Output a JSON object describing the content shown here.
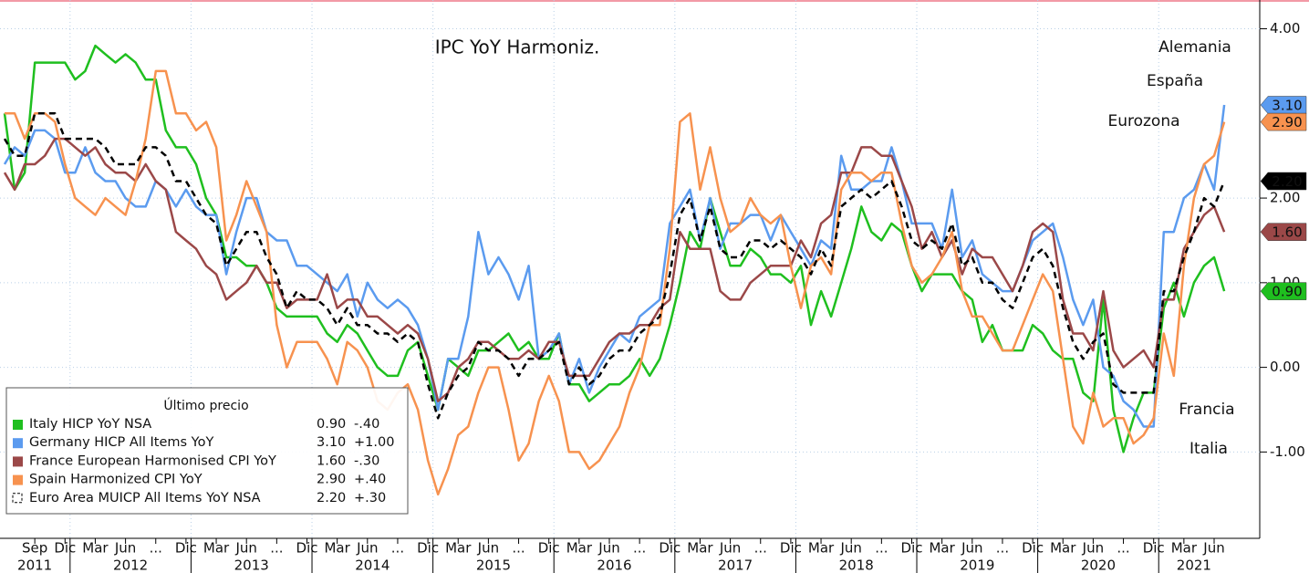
{
  "chart_data": {
    "type": "line",
    "title": "IPC YoY Harmoniz.",
    "legend_title": "Último precio",
    "x": [
      "2011-06",
      "2011-07",
      "2011-08",
      "2011-09",
      "2011-10",
      "2011-11",
      "2011-12",
      "2012-01",
      "2012-02",
      "2012-03",
      "2012-04",
      "2012-05",
      "2012-06",
      "2012-07",
      "2012-08",
      "2012-09",
      "2012-10",
      "2012-11",
      "2012-12",
      "2013-01",
      "2013-02",
      "2013-03",
      "2013-04",
      "2013-05",
      "2013-06",
      "2013-07",
      "2013-08",
      "2013-09",
      "2013-10",
      "2013-11",
      "2013-12",
      "2014-01",
      "2014-02",
      "2014-03",
      "2014-04",
      "2014-05",
      "2014-06",
      "2014-07",
      "2014-08",
      "2014-09",
      "2014-10",
      "2014-11",
      "2014-12",
      "2015-01",
      "2015-02",
      "2015-03",
      "2015-04",
      "2015-05",
      "2015-06",
      "2015-07",
      "2015-08",
      "2015-09",
      "2015-10",
      "2015-11",
      "2015-12",
      "2016-01",
      "2016-02",
      "2016-03",
      "2016-04",
      "2016-05",
      "2016-06",
      "2016-07",
      "2016-08",
      "2016-09",
      "2016-10",
      "2016-11",
      "2016-12",
      "2017-01",
      "2017-02",
      "2017-03",
      "2017-04",
      "2017-05",
      "2017-06",
      "2017-07",
      "2017-08",
      "2017-09",
      "2017-10",
      "2017-11",
      "2017-12",
      "2018-01",
      "2018-02",
      "2018-03",
      "2018-04",
      "2018-05",
      "2018-06",
      "2018-07",
      "2018-08",
      "2018-09",
      "2018-10",
      "2018-11",
      "2018-12",
      "2019-01",
      "2019-02",
      "2019-03",
      "2019-04",
      "2019-05",
      "2019-06",
      "2019-07",
      "2019-08",
      "2019-09",
      "2019-10",
      "2019-11",
      "2019-12",
      "2020-01",
      "2020-02",
      "2020-03",
      "2020-04",
      "2020-05",
      "2020-06",
      "2020-07",
      "2020-08",
      "2020-09",
      "2020-10",
      "2020-11",
      "2020-12",
      "2021-01",
      "2021-02",
      "2021-03",
      "2021-04",
      "2021-05",
      "2021-06",
      "2021-07"
    ],
    "xticks": [
      {
        "value": "2011-09",
        "label": "Sep"
      },
      {
        "value": "2011-12",
        "label": "Dic"
      },
      {
        "value": "2012-03",
        "label": "Mar"
      },
      {
        "value": "2012-06",
        "label": "Jun"
      },
      {
        "value": "2012-09",
        "label": "..."
      },
      {
        "value": "2012-12",
        "label": "Dic"
      },
      {
        "value": "2013-03",
        "label": "Mar"
      },
      {
        "value": "2013-06",
        "label": "Jun"
      },
      {
        "value": "2013-09",
        "label": "..."
      },
      {
        "value": "2013-12",
        "label": "Dic"
      },
      {
        "value": "2014-03",
        "label": "Mar"
      },
      {
        "value": "2014-06",
        "label": "Jun"
      },
      {
        "value": "2014-09",
        "label": "..."
      },
      {
        "value": "2014-12",
        "label": "Dic"
      },
      {
        "value": "2015-03",
        "label": "Mar"
      },
      {
        "value": "2015-06",
        "label": "Jun"
      },
      {
        "value": "2015-09",
        "label": "..."
      },
      {
        "value": "2015-12",
        "label": "Dic"
      },
      {
        "value": "2016-03",
        "label": "Mar"
      },
      {
        "value": "2016-06",
        "label": "Jun"
      },
      {
        "value": "2016-09",
        "label": "..."
      },
      {
        "value": "2016-12",
        "label": "Dic"
      },
      {
        "value": "2017-03",
        "label": "Mar"
      },
      {
        "value": "2017-06",
        "label": "Jun"
      },
      {
        "value": "2017-09",
        "label": "..."
      },
      {
        "value": "2017-12",
        "label": "Dic"
      },
      {
        "value": "2018-03",
        "label": "Mar"
      },
      {
        "value": "2018-06",
        "label": "Jun"
      },
      {
        "value": "2018-09",
        "label": "..."
      },
      {
        "value": "2018-12",
        "label": "Dic"
      },
      {
        "value": "2019-03",
        "label": "Mar"
      },
      {
        "value": "2019-06",
        "label": "Jun"
      },
      {
        "value": "2019-09",
        "label": "..."
      },
      {
        "value": "2019-12",
        "label": "Dic"
      },
      {
        "value": "2020-03",
        "label": "Mar"
      },
      {
        "value": "2020-06",
        "label": "Jun"
      },
      {
        "value": "2020-09",
        "label": "..."
      },
      {
        "value": "2020-12",
        "label": "Dic"
      },
      {
        "value": "2021-03",
        "label": "Mar"
      },
      {
        "value": "2021-06",
        "label": "Jun"
      }
    ],
    "years": [
      "2011",
      "2012",
      "2013",
      "2014",
      "2015",
      "2016",
      "2017",
      "2018",
      "2019",
      "2020",
      "2021"
    ],
    "ylim": [
      -2.02,
      4.34
    ],
    "yticks": [
      {
        "value": 4,
        "label": "4.00"
      },
      {
        "value": 2,
        "label": "2.00"
      },
      {
        "value": 1,
        "label": "1.00"
      },
      {
        "value": 0,
        "label": "0.00"
      },
      {
        "value": -1,
        "label": "-1.00"
      }
    ],
    "grid": true,
    "series": [
      {
        "name": "Italy HICP YoY NSA",
        "region_label": "Italia",
        "color": "#1fbf1f",
        "dashed": false,
        "last": 0.9,
        "last_label": "0.90",
        "change": -0.4,
        "change_label": "-.40",
        "values": [
          3.0,
          2.1,
          2.3,
          3.6,
          3.6,
          3.6,
          3.6,
          3.4,
          3.5,
          3.8,
          3.7,
          3.6,
          3.7,
          3.6,
          3.4,
          3.4,
          2.8,
          2.6,
          2.6,
          2.4,
          2.0,
          1.8,
          1.3,
          1.3,
          1.2,
          1.2,
          1.0,
          0.7,
          0.6,
          0.6,
          0.6,
          0.6,
          0.4,
          0.3,
          0.5,
          0.4,
          0.2,
          0.0,
          -0.1,
          -0.1,
          0.2,
          0.3,
          -0.1,
          -0.5,
          0.1,
          0.0,
          -0.1,
          0.2,
          0.2,
          0.3,
          0.4,
          0.2,
          0.3,
          0.1,
          0.1,
          0.4,
          -0.2,
          -0.2,
          -0.4,
          -0.3,
          -0.2,
          -0.2,
          -0.1,
          0.1,
          -0.1,
          0.1,
          0.5,
          1.0,
          1.6,
          1.4,
          2.0,
          1.6,
          1.2,
          1.2,
          1.4,
          1.3,
          1.1,
          1.1,
          1.0,
          1.2,
          0.5,
          0.9,
          0.6,
          1.0,
          1.4,
          1.9,
          1.6,
          1.5,
          1.7,
          1.6,
          1.2,
          0.9,
          1.1,
          1.1,
          1.1,
          0.9,
          0.8,
          0.3,
          0.5,
          0.2,
          0.2,
          0.2,
          0.5,
          0.4,
          0.2,
          0.1,
          0.1,
          -0.3,
          -0.4,
          0.8,
          -0.5,
          -1.0,
          -0.6,
          -0.3,
          -0.3,
          0.7,
          1.0,
          0.6,
          1.0,
          1.2,
          1.3,
          0.9
        ]
      },
      {
        "name": "Germany HICP All Items YoY",
        "region_label": "Alemania",
        "color": "#5b9bef",
        "dashed": false,
        "last": 3.1,
        "last_label": "3.10",
        "change": 1.0,
        "change_label": "+1.00",
        "values": [
          2.4,
          2.6,
          2.5,
          2.8,
          2.8,
          2.7,
          2.3,
          2.3,
          2.6,
          2.3,
          2.2,
          2.2,
          2.0,
          1.9,
          1.9,
          2.2,
          2.1,
          1.9,
          2.1,
          1.9,
          1.8,
          1.8,
          1.1,
          1.6,
          2.0,
          2.0,
          1.6,
          1.5,
          1.5,
          1.2,
          1.2,
          1.1,
          1.0,
          0.9,
          1.1,
          0.6,
          1.0,
          0.8,
          0.7,
          0.8,
          0.7,
          0.5,
          0.1,
          -0.5,
          0.1,
          0.1,
          0.6,
          1.6,
          1.1,
          1.3,
          1.1,
          0.8,
          1.2,
          0.1,
          0.2,
          0.4,
          -0.2,
          0.1,
          -0.3,
          0.0,
          0.2,
          0.4,
          0.3,
          0.6,
          0.7,
          0.8,
          1.7,
          1.9,
          2.1,
          1.5,
          2.0,
          1.4,
          1.7,
          1.7,
          1.8,
          1.8,
          1.5,
          1.8,
          1.6,
          1.4,
          1.2,
          1.5,
          1.4,
          2.5,
          2.1,
          2.1,
          2.2,
          2.2,
          2.6,
          2.2,
          1.7,
          1.7,
          1.7,
          1.4,
          2.1,
          1.3,
          1.5,
          1.1,
          1.0,
          0.9,
          0.9,
          1.2,
          1.5,
          1.6,
          1.7,
          1.3,
          0.8,
          0.5,
          0.8,
          0.0,
          -0.1,
          -0.4,
          -0.5,
          -0.7,
          -0.7,
          1.6,
          1.6,
          2.0,
          2.1,
          2.4,
          2.1,
          3.1
        ]
      },
      {
        "name": "France European Harmonised CPI YoY",
        "region_label": "Francia",
        "color": "#9b4848",
        "dashed": false,
        "last": 1.6,
        "last_label": "1.60",
        "change": -0.3,
        "change_label": "-.30",
        "values": [
          2.3,
          2.1,
          2.4,
          2.4,
          2.5,
          2.7,
          2.7,
          2.6,
          2.5,
          2.6,
          2.4,
          2.3,
          2.3,
          2.2,
          2.4,
          2.2,
          2.1,
          1.6,
          1.5,
          1.4,
          1.2,
          1.1,
          0.8,
          0.9,
          1.0,
          1.2,
          1.0,
          1.0,
          0.7,
          0.8,
          0.8,
          0.8,
          1.1,
          0.7,
          0.8,
          0.8,
          0.6,
          0.6,
          0.5,
          0.4,
          0.5,
          0.4,
          0.1,
          -0.4,
          -0.3,
          0.0,
          0.1,
          0.3,
          0.3,
          0.2,
          0.1,
          0.1,
          0.2,
          0.1,
          0.3,
          0.3,
          -0.1,
          -0.1,
          -0.1,
          0.1,
          0.3,
          0.4,
          0.4,
          0.5,
          0.5,
          0.7,
          0.8,
          1.6,
          1.4,
          1.4,
          1.4,
          0.9,
          0.8,
          0.8,
          1.0,
          1.1,
          1.2,
          1.2,
          1.2,
          1.5,
          1.3,
          1.7,
          1.8,
          2.3,
          2.3,
          2.6,
          2.6,
          2.5,
          2.5,
          2.2,
          1.9,
          1.4,
          1.6,
          1.3,
          1.5,
          1.1,
          1.4,
          1.3,
          1.3,
          1.1,
          0.9,
          1.2,
          1.6,
          1.7,
          1.6,
          0.8,
          0.4,
          0.4,
          0.2,
          0.9,
          0.2,
          0.0,
          0.1,
          0.2,
          0.0,
          0.8,
          0.8,
          1.4,
          1.6,
          1.8,
          1.9,
          1.6
        ]
      },
      {
        "name": "Spain Harmonized CPI YoY",
        "region_label": "España",
        "color": "#f7924f",
        "dashed": false,
        "last": 2.9,
        "last_label": "2.90",
        "change": 0.4,
        "change_label": "+.40",
        "values": [
          3.0,
          3.0,
          2.7,
          3.0,
          3.0,
          2.9,
          2.4,
          2.0,
          1.9,
          1.8,
          2.0,
          1.9,
          1.8,
          2.2,
          2.7,
          3.5,
          3.5,
          3.0,
          3.0,
          2.8,
          2.9,
          2.6,
          1.5,
          1.8,
          2.2,
          1.9,
          1.6,
          0.5,
          0.0,
          0.3,
          0.3,
          0.3,
          0.1,
          -0.2,
          0.3,
          0.2,
          0.0,
          -0.4,
          -0.5,
          -0.3,
          -0.2,
          -0.5,
          -1.1,
          -1.5,
          -1.2,
          -0.8,
          -0.7,
          -0.3,
          0.0,
          0.0,
          -0.5,
          -1.1,
          -0.9,
          -0.4,
          -0.1,
          -0.4,
          -1.0,
          -1.0,
          -1.2,
          -1.1,
          -0.9,
          -0.7,
          -0.3,
          0.0,
          0.5,
          0.5,
          1.4,
          2.9,
          3.0,
          2.1,
          2.6,
          2.0,
          1.6,
          1.7,
          2.0,
          1.8,
          1.7,
          1.8,
          1.2,
          0.7,
          1.2,
          1.3,
          1.1,
          2.1,
          2.3,
          2.3,
          2.2,
          2.3,
          2.3,
          1.7,
          1.2,
          1.0,
          1.1,
          1.3,
          1.6,
          0.9,
          0.6,
          0.6,
          0.4,
          0.2,
          0.2,
          0.5,
          0.8,
          1.1,
          0.9,
          0.1,
          -0.7,
          -0.9,
          -0.3,
          -0.7,
          -0.6,
          -0.6,
          -0.9,
          -0.8,
          -0.6,
          0.4,
          -0.1,
          1.2,
          2.0,
          2.4,
          2.5,
          2.9
        ]
      },
      {
        "name": "Euro Area MUICP All Items YoY NSA",
        "region_label": "Eurozona",
        "color": "#000000",
        "dashed": true,
        "last": 2.2,
        "last_label": "2.20",
        "change": 0.3,
        "change_label": "+.30",
        "values": [
          2.7,
          2.5,
          2.5,
          3.0,
          3.0,
          3.0,
          2.7,
          2.7,
          2.7,
          2.7,
          2.6,
          2.4,
          2.4,
          2.4,
          2.6,
          2.6,
          2.5,
          2.2,
          2.2,
          2.0,
          1.8,
          1.7,
          1.2,
          1.4,
          1.6,
          1.6,
          1.3,
          1.1,
          0.7,
          0.9,
          0.8,
          0.8,
          0.7,
          0.5,
          0.7,
          0.5,
          0.5,
          0.4,
          0.4,
          0.3,
          0.4,
          0.3,
          -0.2,
          -0.6,
          -0.3,
          -0.1,
          0.0,
          0.3,
          0.2,
          0.2,
          0.1,
          -0.1,
          0.1,
          0.1,
          0.2,
          0.3,
          -0.2,
          0.0,
          -0.2,
          -0.1,
          0.1,
          0.2,
          0.2,
          0.4,
          0.5,
          0.6,
          1.1,
          1.8,
          2.0,
          1.5,
          1.9,
          1.4,
          1.3,
          1.3,
          1.5,
          1.5,
          1.4,
          1.5,
          1.4,
          1.3,
          1.1,
          1.4,
          1.2,
          1.9,
          2.0,
          2.1,
          2.0,
          2.1,
          2.2,
          1.9,
          1.5,
          1.4,
          1.5,
          1.4,
          1.7,
          1.2,
          1.3,
          1.0,
          1.0,
          0.8,
          0.7,
          1.0,
          1.3,
          1.4,
          1.2,
          0.7,
          0.3,
          0.1,
          0.3,
          0.4,
          -0.2,
          -0.3,
          -0.3,
          -0.3,
          -0.3,
          0.9,
          0.9,
          1.3,
          1.6,
          2.0,
          1.9,
          2.2
        ]
      }
    ]
  }
}
